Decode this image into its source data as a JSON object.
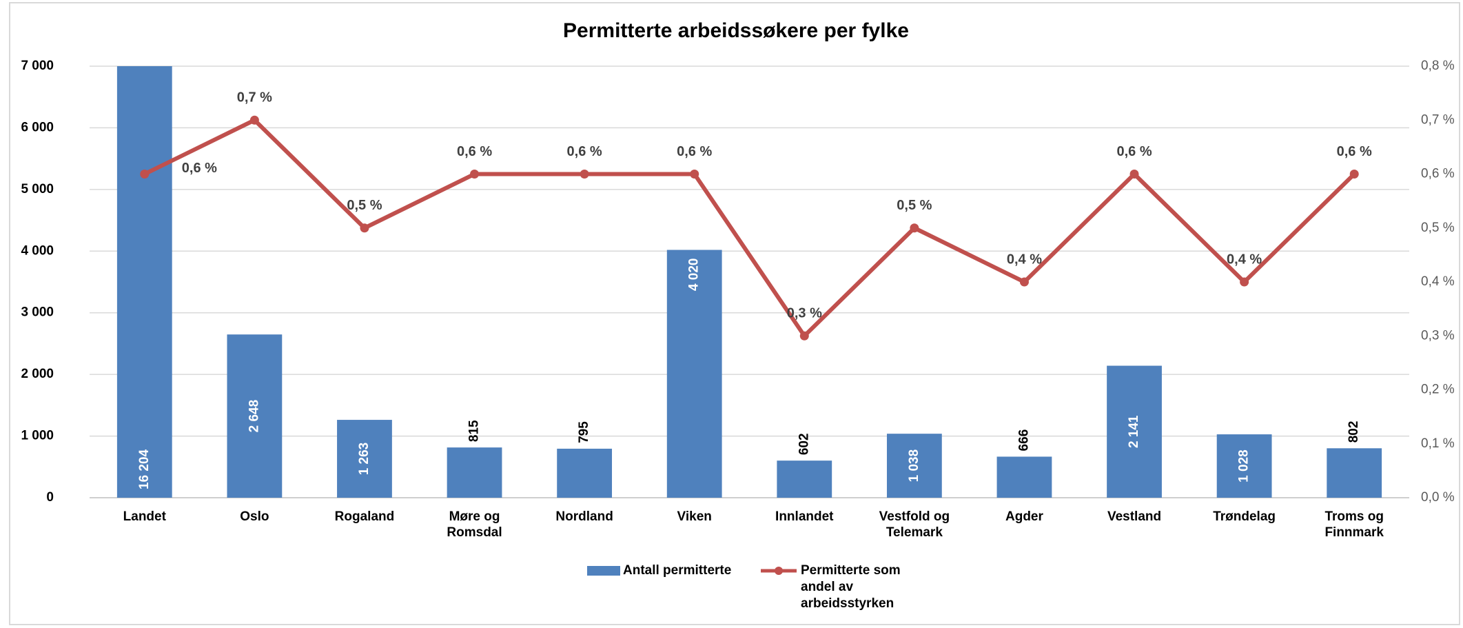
{
  "chart_data": {
    "type": "bar-line",
    "title": "Permitterte arbeidssøkere per fylke",
    "categories": [
      "Landet",
      "Oslo",
      "Rogaland",
      "Møre og Romsdal",
      "Nordland",
      "Viken",
      "Innlandet",
      "Vestfold og Telemark",
      "Agder",
      "Vestland",
      "Trøndelag",
      "Troms og Finnmark"
    ],
    "series": [
      {
        "name": "Antall permitterte",
        "type": "bar",
        "color": "#4f81bd",
        "values": [
          16204,
          2648,
          1263,
          815,
          795,
          4020,
          602,
          1038,
          666,
          2141,
          1028,
          802
        ],
        "value_labels": [
          "16 204",
          "2 648",
          "1 263",
          "815",
          "795",
          "4 020",
          "602",
          "1 038",
          "666",
          "2 141",
          "1 028",
          "802"
        ]
      },
      {
        "name": "Permitterte som andel av arbeidsstyrken",
        "type": "line",
        "axis": "y2",
        "color": "#c0504d",
        "values": [
          0.6,
          0.7,
          0.5,
          0.6,
          0.6,
          0.6,
          0.3,
          0.5,
          0.4,
          0.6,
          0.4,
          0.6
        ],
        "value_labels": [
          "0,6 %",
          "0,7 %",
          "0,5 %",
          "0,6 %",
          "0,6 %",
          "0,6 %",
          "0,3 %",
          "0,5 %",
          "0,4 %",
          "0,6 %",
          "0,4 %",
          "0,6 %"
        ]
      }
    ],
    "ylim": [
      0,
      7000
    ],
    "yticks": [
      0,
      {
        "value": 1000,
        "label": "1 000"
      },
      {
        "value": 2000,
        "label": "2 000"
      },
      {
        "value": 3000,
        "label": "3 000"
      },
      {
        "value": 4000,
        "label": "4 000"
      },
      {
        "value": 5000,
        "label": "5 000"
      },
      {
        "value": 6000,
        "label": "6 000"
      },
      {
        "value": 7000,
        "label": "7 000"
      }
    ],
    "y2lim": [
      0,
      0.8
    ],
    "y2ticks": [
      {
        "value": 0,
        "label": "0,0 %"
      },
      {
        "value": 0.1,
        "label": "0,1 %"
      },
      {
        "value": 0.2,
        "label": "0,2 %"
      },
      {
        "value": 0.3,
        "label": "0,3 %"
      },
      {
        "value": 0.4,
        "label": "0,4 %"
      },
      {
        "value": 0.5,
        "label": "0,5 %"
      },
      {
        "value": 0.6,
        "label": "0,6 %"
      },
      {
        "value": 0.7,
        "label": "0,7 %"
      },
      {
        "value": 0.8,
        "label": "0,8 %"
      }
    ],
    "grid": true,
    "legend": "bottom"
  }
}
